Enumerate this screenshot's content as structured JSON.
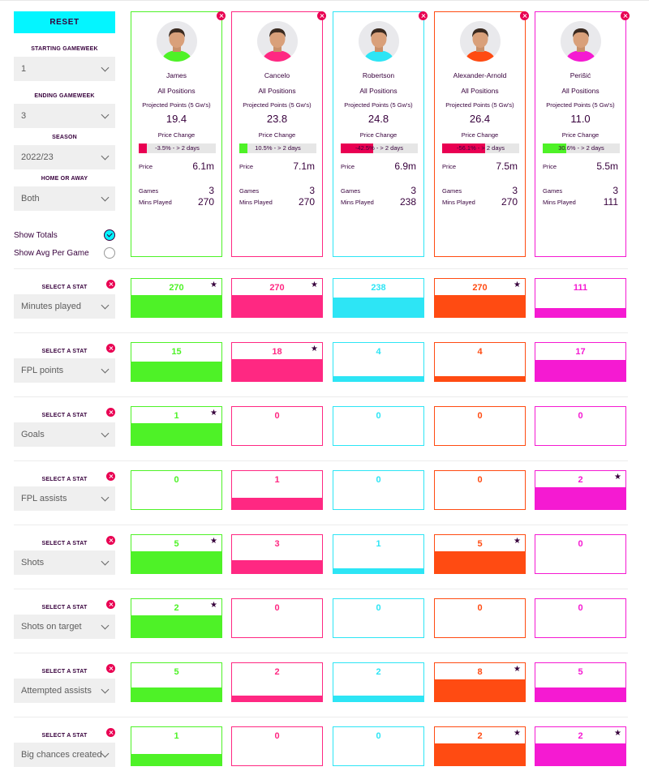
{
  "sidebar": {
    "reset_label": "RESET",
    "starting_gameweek": {
      "label": "STARTING GAMEWEEK",
      "value": "1"
    },
    "ending_gameweek": {
      "label": "ENDING GAMEWEEK",
      "value": "3"
    },
    "season": {
      "label": "SEASON",
      "value": "2022/23"
    },
    "home_away": {
      "label": "HOME OR AWAY",
      "value": "Both"
    },
    "show_totals": {
      "label": "Show Totals",
      "checked": true
    },
    "show_avg": {
      "label": "Show Avg Per Game",
      "checked": false
    },
    "select_stat_label": "SELECT A STAT"
  },
  "card_labels": {
    "projected": "Projected Points (5 Gw's)",
    "price_change": "Price Change",
    "price": "Price",
    "games": "Games",
    "mins": "Mins Played"
  },
  "players": [
    {
      "name": "James",
      "position": "All Positions",
      "projected": "19.4",
      "price_change_text": "-3.5% - > 2 days",
      "price_change_fraction": 0.035,
      "price": "6.1m",
      "games": "3",
      "mins": "270",
      "color": "#4ef227",
      "change_color": "#e90052"
    },
    {
      "name": "Cancelo",
      "position": "All Positions",
      "projected": "23.8",
      "price_change_text": "10.5% - > 2 days",
      "price_change_fraction": 0.105,
      "price": "7.1m",
      "games": "3",
      "mins": "270",
      "color": "#ff2882",
      "change_color": "#4ef227"
    },
    {
      "name": "Robertson",
      "position": "All Positions",
      "projected": "24.8",
      "price_change_text": "-42.5% - > 2 days",
      "price_change_fraction": 0.425,
      "price": "6.9m",
      "games": "3",
      "mins": "238",
      "color": "#2de5f5",
      "change_color": "#e90052"
    },
    {
      "name": "Alexander-Arnold",
      "position": "All Positions",
      "projected": "26.4",
      "price_change_text": "-56.1% - > 2 days",
      "price_change_fraction": 0.561,
      "price": "7.5m",
      "games": "3",
      "mins": "270",
      "color": "#ff4b12",
      "change_color": "#e90052"
    },
    {
      "name": "Perišić",
      "position": "All Positions",
      "projected": "11.0",
      "price_change_text": "30.6% - > 2 days",
      "price_change_fraction": 0.306,
      "price": "5.5m",
      "games": "3",
      "mins": "111",
      "color": "#f51ad2",
      "change_color": "#4ef227"
    }
  ],
  "stats": [
    {
      "name": "Minutes played",
      "values": [
        "270",
        "270",
        "238",
        "270",
        "111"
      ],
      "fill": [
        0.58,
        0.58,
        0.51,
        0.58,
        0.24
      ],
      "best": [
        true,
        true,
        false,
        true,
        false
      ]
    },
    {
      "name": "FPL points",
      "values": [
        "15",
        "18",
        "4",
        "4",
        "17"
      ],
      "fill": [
        0.5,
        0.58,
        0.12,
        0.12,
        0.55
      ],
      "best": [
        false,
        true,
        false,
        false,
        false
      ]
    },
    {
      "name": "Goals",
      "values": [
        "1",
        "0",
        "0",
        "0",
        "0"
      ],
      "fill": [
        0.58,
        0,
        0,
        0,
        0
      ],
      "best": [
        true,
        false,
        false,
        false,
        false
      ]
    },
    {
      "name": "FPL assists",
      "values": [
        "0",
        "1",
        "0",
        "0",
        "2"
      ],
      "fill": [
        0,
        0.29,
        0,
        0,
        0.58
      ],
      "best": [
        false,
        false,
        false,
        false,
        true
      ]
    },
    {
      "name": "Shots",
      "values": [
        "5",
        "3",
        "1",
        "5",
        "0"
      ],
      "fill": [
        0.58,
        0.35,
        0.12,
        0.58,
        0
      ],
      "best": [
        true,
        false,
        false,
        true,
        false
      ]
    },
    {
      "name": "Shots on target",
      "values": [
        "2",
        "0",
        "0",
        "0",
        "0"
      ],
      "fill": [
        0.58,
        0,
        0,
        0,
        0
      ],
      "best": [
        true,
        false,
        false,
        false,
        false
      ]
    },
    {
      "name": "Attempted assists",
      "values": [
        "5",
        "2",
        "2",
        "8",
        "5"
      ],
      "fill": [
        0.37,
        0.15,
        0.15,
        0.58,
        0.37
      ],
      "best": [
        false,
        false,
        false,
        true,
        false
      ]
    },
    {
      "name": "Big chances created",
      "values": [
        "1",
        "0",
        "0",
        "2",
        "2"
      ],
      "fill": [
        0.29,
        0,
        0,
        0.58,
        0.58
      ],
      "best": [
        false,
        false,
        false,
        true,
        true
      ]
    }
  ]
}
